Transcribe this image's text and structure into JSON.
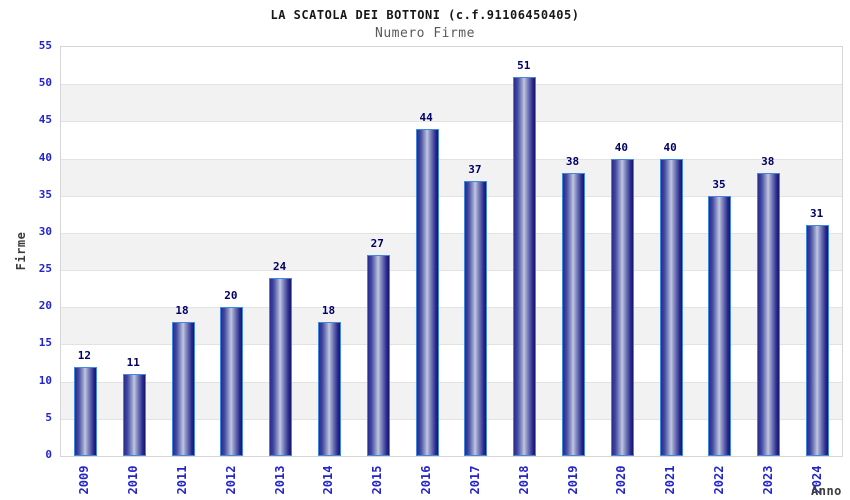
{
  "header": {
    "title": "LA SCATOLA DEI BOTTONI (c.f.91106450405)",
    "subtitle": "Numero Firme"
  },
  "chart_data": {
    "type": "bar",
    "title": "LA SCATOLA DEI BOTTONI (c.f.91106450405)",
    "subtitle": "Numero Firme",
    "categories": [
      "2009",
      "2010",
      "2011",
      "2012",
      "2013",
      "2014",
      "2015",
      "2016",
      "2017",
      "2018",
      "2019",
      "2020",
      "2021",
      "2022",
      "2023",
      "2024"
    ],
    "values": [
      12,
      11,
      18,
      20,
      24,
      18,
      27,
      44,
      37,
      51,
      38,
      40,
      40,
      35,
      38,
      31
    ],
    "xlabel": "Anno",
    "ylabel": "Firme",
    "ylim": [
      0,
      55
    ],
    "ytick_step": 5,
    "grid": true,
    "legend": "none",
    "colors": {
      "bar_border": "#4289de",
      "bar_dark": "#15156c",
      "bar_light": "#c1c6e0",
      "tick_label": "#2424cd",
      "value_label": "#000066",
      "band_fill": "#f2f2f2",
      "gridline": "#e2e2e2",
      "axis_label": "#3c3c3c"
    }
  }
}
